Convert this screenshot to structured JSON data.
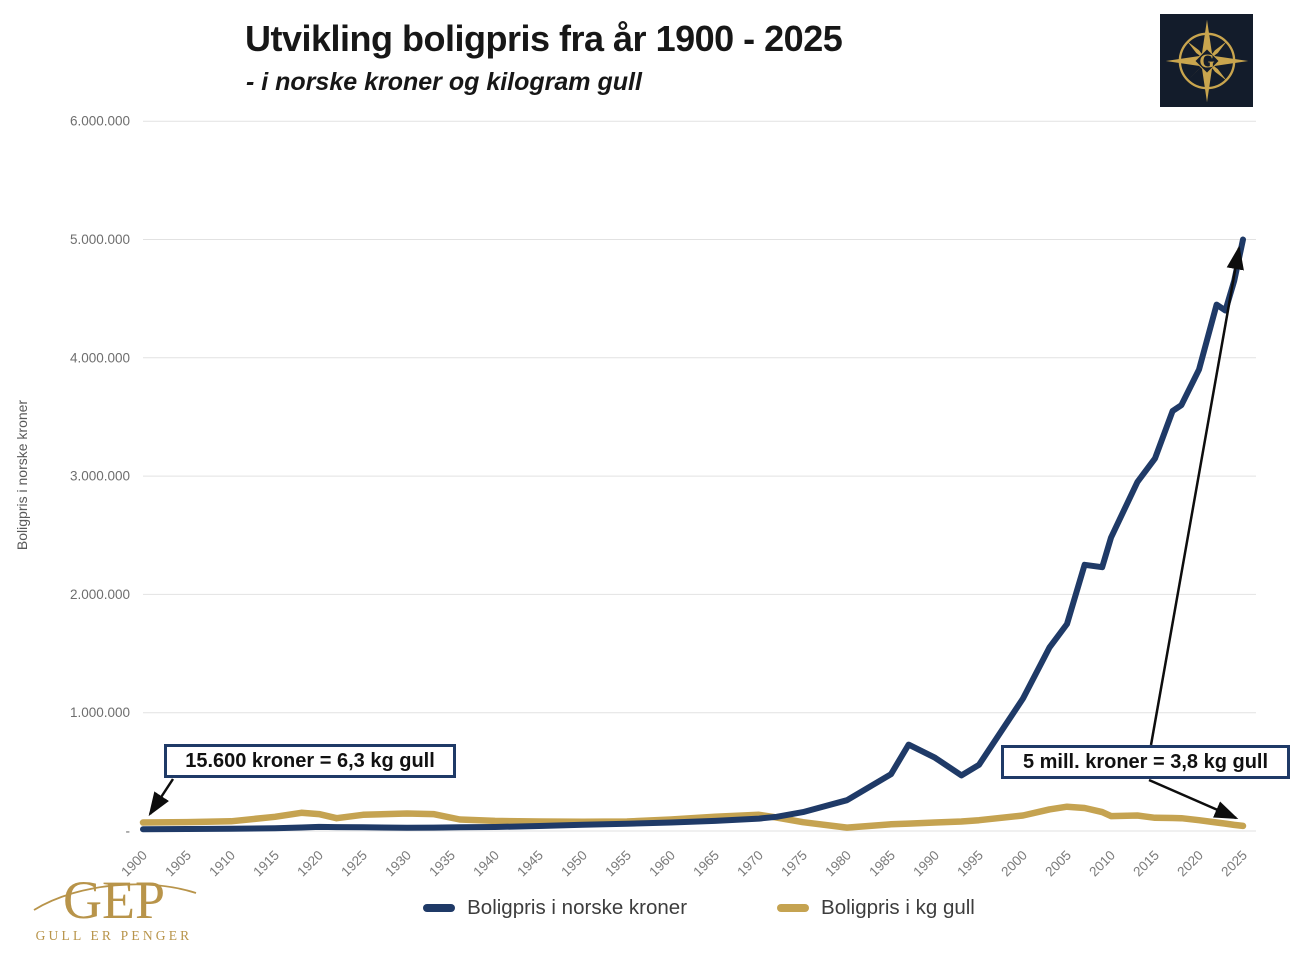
{
  "header": {
    "title": "Utvikling boligpris fra år 1900 - 2025",
    "subtitle": "- i norske kroner og kilogram gull"
  },
  "brand": {
    "letter": "G"
  },
  "chart_data": {
    "type": "line",
    "title": "Utvikling boligpris fra år 1900 - 2025",
    "subtitle": "- i norske kroner og kilogram gull",
    "y_axis_title": "Boligpris i norske kroner",
    "y_tick_labels": [
      "-",
      "1.000.000",
      "2.000.000",
      "3.000.000",
      "4.000.000",
      "5.000.000",
      "6.000.000"
    ],
    "ylim": [
      0,
      6000000
    ],
    "x_range": [
      1900,
      2025
    ],
    "x_tick_labels": [
      "1900",
      "1905",
      "1910",
      "1915",
      "1920",
      "1925",
      "1930",
      "1935",
      "1940",
      "1945",
      "1950",
      "1955",
      "1960",
      "1965",
      "1970",
      "1975",
      "1980",
      "1985",
      "1990",
      "1995",
      "2000",
      "2005",
      "2010",
      "2015",
      "2020",
      "2025"
    ],
    "grid": "horizontal",
    "legend_position": "bottom",
    "x": [
      1900,
      1905,
      1910,
      1915,
      1918,
      1920,
      1922,
      1925,
      1930,
      1933,
      1936,
      1940,
      1945,
      1950,
      1955,
      1960,
      1965,
      1970,
      1972,
      1975,
      1980,
      1985,
      1987,
      1990,
      1993,
      1995,
      2000,
      2003,
      2005,
      2007,
      2009,
      2010,
      2013,
      2015,
      2017,
      2018,
      2020,
      2022,
      2023,
      2024,
      2025
    ],
    "series": [
      {
        "name": "Boligpris i norske kroner",
        "unit": "NOK",
        "color": "#1f3a67",
        "values": [
          15600,
          17000,
          19000,
          24000,
          30000,
          35000,
          33000,
          31000,
          28000,
          29000,
          31000,
          34000,
          42000,
          52000,
          62000,
          72000,
          85000,
          105000,
          120000,
          160000,
          260000,
          480000,
          730000,
          620000,
          470000,
          560000,
          1120000,
          1550000,
          1750000,
          2250000,
          2230000,
          2480000,
          2950000,
          3150000,
          3550000,
          3600000,
          3900000,
          4450000,
          4400000,
          4650000,
          5000000
        ]
      },
      {
        "name": "Boligpris i kg gull",
        "unit": "kg gull",
        "color": "#c5a351",
        "axis": "hidden secondary axis (kilogram gull)",
        "values": [
          6.3,
          6.6,
          7.2,
          10.5,
          13.5,
          12.5,
          9.5,
          12,
          13,
          12.5,
          8.5,
          7.5,
          7,
          6.8,
          7,
          8.5,
          10.5,
          12,
          10,
          6.5,
          2.5,
          5,
          5.5,
          6.3,
          7,
          8,
          11.5,
          16,
          18,
          17,
          14,
          11,
          11.5,
          9.8,
          9.6,
          9.5,
          8,
          6.3,
          5.5,
          4.5,
          3.8
        ]
      }
    ],
    "annotations": [
      {
        "text": "15.600 kroner = 6,3 kg gull",
        "target": "start of series, year 1900"
      },
      {
        "text": "5 mill. kroner = 3,8 kg gull",
        "target": "end of series, year 2025"
      }
    ]
  },
  "legend": {
    "items": [
      {
        "label": "Boligpris i norske kroner",
        "color": "#1f3a67"
      },
      {
        "label": "Boligpris i kg gull",
        "color": "#c5a351"
      }
    ]
  },
  "footer_logo": {
    "text": "GEP",
    "tagline": "GULL ER PENGER",
    "color": "#b8944a"
  }
}
